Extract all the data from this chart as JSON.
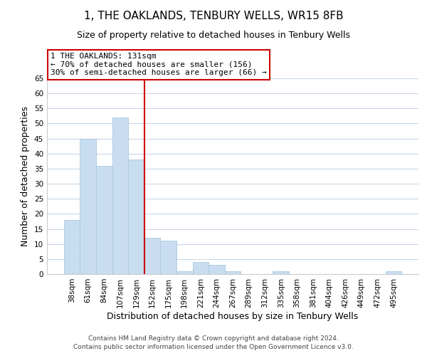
{
  "title": "1, THE OAKLANDS, TENBURY WELLS, WR15 8FB",
  "subtitle": "Size of property relative to detached houses in Tenbury Wells",
  "xlabel": "Distribution of detached houses by size in Tenbury Wells",
  "ylabel": "Number of detached properties",
  "bar_color": "#c8ddf0",
  "bar_edge_color": "#a8c8e0",
  "categories": [
    "38sqm",
    "61sqm",
    "84sqm",
    "107sqm",
    "129sqm",
    "152sqm",
    "175sqm",
    "198sqm",
    "221sqm",
    "244sqm",
    "267sqm",
    "289sqm",
    "312sqm",
    "335sqm",
    "358sqm",
    "381sqm",
    "404sqm",
    "426sqm",
    "449sqm",
    "472sqm",
    "495sqm"
  ],
  "values": [
    18,
    45,
    36,
    52,
    38,
    12,
    11,
    1,
    4,
    3,
    1,
    0,
    0,
    1,
    0,
    0,
    0,
    0,
    0,
    0,
    1
  ],
  "ylim": [
    0,
    65
  ],
  "yticks": [
    0,
    5,
    10,
    15,
    20,
    25,
    30,
    35,
    40,
    45,
    50,
    55,
    60,
    65
  ],
  "property_line_index": 4,
  "property_line_color": "#cc0000",
  "annotation_line1": "1 THE OAKLANDS: 131sqm",
  "annotation_line2": "← 70% of detached houses are smaller (156)",
  "annotation_line3": "30% of semi-detached houses are larger (66) →",
  "annotation_box_color": "#ffffff",
  "annotation_box_edge": "#cc0000",
  "footer_line1": "Contains HM Land Registry data © Crown copyright and database right 2024.",
  "footer_line2": "Contains public sector information licensed under the Open Government Licence v3.0.",
  "background_color": "#ffffff",
  "grid_color": "#c8d8e8",
  "title_fontsize": 11,
  "subtitle_fontsize": 9,
  "axis_label_fontsize": 9,
  "tick_fontsize": 7.5,
  "annotation_fontsize": 8,
  "footer_fontsize": 6.5
}
